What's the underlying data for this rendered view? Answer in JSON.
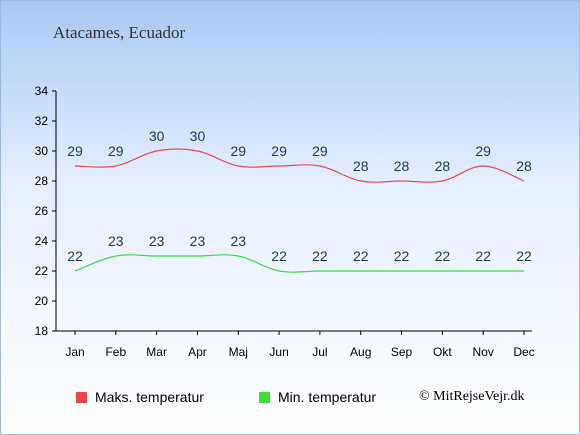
{
  "title": "Atacames, Ecuador",
  "copyright": "© MitRejseVejr.dk",
  "colors": {
    "max": "#e84a4a",
    "min": "#3adf3a"
  },
  "chart_data": {
    "type": "line",
    "categories": [
      "Jan",
      "Feb",
      "Mar",
      "Apr",
      "Maj",
      "Jun",
      "Jul",
      "Aug",
      "Sep",
      "Okt",
      "Nov",
      "Dec"
    ],
    "ylim": [
      18,
      34
    ],
    "yticks": [
      18,
      20,
      22,
      24,
      26,
      28,
      30,
      32,
      34
    ],
    "grid": false,
    "legend_position": "bottom",
    "series": [
      {
        "name": "Maks. temperatur",
        "color": "#e84a4a",
        "values": [
          29,
          29,
          30,
          30,
          29,
          29,
          29,
          28,
          28,
          28,
          29,
          28
        ]
      },
      {
        "name": "Min. temperatur",
        "color": "#3adf3a",
        "values": [
          22,
          23,
          23,
          23,
          23,
          22,
          22,
          22,
          22,
          22,
          22,
          22
        ]
      }
    ]
  }
}
